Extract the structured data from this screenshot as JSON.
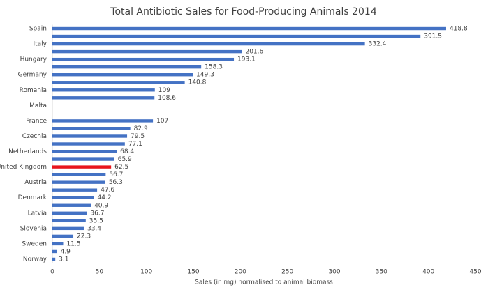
{
  "chart_data": {
    "type": "bar",
    "orientation": "horizontal",
    "title": "Total Antibiotic Sales for Food-Producing Animals 2014",
    "x_label": "Sales (in mg) normalised to animal biomass",
    "categories": [
      "Spain",
      null,
      "Italy",
      null,
      "Hungary",
      null,
      "Germany",
      null,
      "Romania",
      null,
      "Malta",
      null,
      "France",
      null,
      "Czechia",
      null,
      "Netherlands",
      null,
      "United Kingdom",
      null,
      "Austria",
      null,
      "Denmark",
      null,
      "Latvia",
      null,
      "Slovenia",
      null,
      "Sweden",
      null,
      "Norway"
    ],
    "values": [
      418.8,
      391.5,
      332.4,
      201.6,
      193.1,
      158.3,
      149.3,
      140.8,
      109,
      108.6,
      null,
      null,
      107,
      82.9,
      79.5,
      77.1,
      68.4,
      65.9,
      62.5,
      56.7,
      56.3,
      47.6,
      44.2,
      40.9,
      36.7,
      35.5,
      33.4,
      22.3,
      11.5,
      4.9,
      3.1
    ],
    "colors": [
      "#4472c4",
      "#4472c4",
      "#4472c4",
      "#4472c4",
      "#4472c4",
      "#4472c4",
      "#4472c4",
      "#4472c4",
      "#4472c4",
      "#4472c4",
      "#4472c4",
      "#4472c4",
      "#4472c4",
      "#4472c4",
      "#4472c4",
      "#4472c4",
      "#4472c4",
      "#4472c4",
      "#e8141b",
      "#4472c4",
      "#4472c4",
      "#4472c4",
      "#4472c4",
      "#4472c4",
      "#4472c4",
      "#4472c4",
      "#4472c4",
      "#4472c4",
      "#4472c4",
      "#4472c4",
      "#4472c4"
    ],
    "xlim": [
      0,
      450
    ],
    "xticks": [
      0,
      50,
      100,
      150,
      200,
      250,
      300,
      350,
      400,
      450
    ],
    "grid": false
  }
}
